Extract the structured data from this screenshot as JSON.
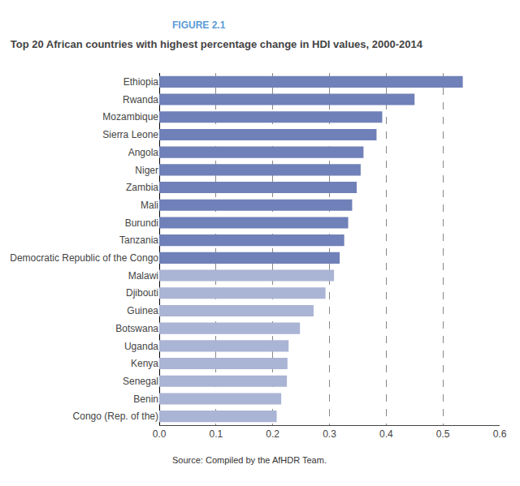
{
  "chart_data": {
    "type": "bar",
    "orientation": "horizontal",
    "title": "Top 20 African countries with highest percentage change in HDI values, 2000-2014",
    "annotations": [
      "FIGURE 2.1",
      "Source: Compiled by the AfHDR Team."
    ],
    "categories": [
      "Ethiopia",
      "Rwanda",
      "Mozambique",
      "Sierra Leone",
      "Angola",
      "Niger",
      "Zambia",
      "Mali",
      "Burundi",
      "Tanzania",
      "Democratic Republic of the Congo",
      "Malawi",
      "Djibouti",
      "Guinea",
      "Botswana",
      "Uganda",
      "Kenya",
      "Senegal",
      "Benin",
      "Congo (Rep. of the)"
    ],
    "values": [
      0.535,
      0.45,
      0.393,
      0.383,
      0.36,
      0.355,
      0.348,
      0.34,
      0.333,
      0.326,
      0.318,
      0.308,
      0.293,
      0.272,
      0.248,
      0.228,
      0.226,
      0.225,
      0.215,
      0.207
    ],
    "colors": [
      "#7080b8",
      "#7080b8",
      "#7080b8",
      "#7080b8",
      "#7080b8",
      "#7080b8",
      "#7080b8",
      "#7080b8",
      "#7080b8",
      "#7080b8",
      "#7080b8",
      "#aab4d4",
      "#aab4d4",
      "#aab4d4",
      "#aab4d4",
      "#aab4d4",
      "#aab4d4",
      "#aab4d4",
      "#aab4d4",
      "#aab4d4"
    ],
    "xlim": [
      0.0,
      0.6
    ],
    "xticks": [
      {
        "value": 0.0,
        "label": "0.0"
      },
      0.1,
      0.2,
      0.3,
      0.4,
      0.5,
      0.6
    ],
    "grid": true
  }
}
